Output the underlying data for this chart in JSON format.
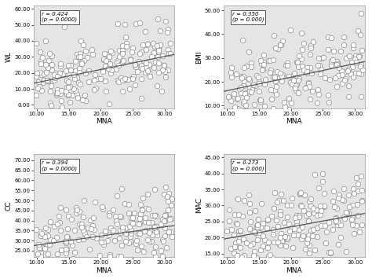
{
  "panels": [
    {
      "ylabel": "WL",
      "xlabel": "MNA",
      "r_value": "r = 0.424",
      "p_value": "(p = 0.0000)",
      "xlim": [
        9.5,
        31.5
      ],
      "ylim": [
        -2,
        62
      ],
      "xticks": [
        10,
        15,
        20,
        25,
        30
      ],
      "yticks": [
        0,
        10,
        20,
        30,
        40,
        50,
        60
      ],
      "line_x": [
        9.5,
        31.5
      ],
      "line_y": [
        13.5,
        31.5
      ],
      "row": 0,
      "col": 0,
      "show_xlabel": true
    },
    {
      "ylabel": "BMI",
      "xlabel": "MNA",
      "r_value": "r = 0.350",
      "p_value": "(p = 0.000)",
      "xlim": [
        9.5,
        31.5
      ],
      "ylim": [
        9,
        52
      ],
      "xticks": [
        10,
        15,
        20,
        25,
        30
      ],
      "yticks": [
        10,
        20,
        30,
        40,
        50
      ],
      "line_x": [
        9.5,
        31.5
      ],
      "line_y": [
        16.0,
        28.5
      ],
      "row": 0,
      "col": 1,
      "show_xlabel": true
    },
    {
      "ylabel": "CC",
      "xlabel": "MNA",
      "r_value": "r = 0.394",
      "p_value": "(p = 0.0000)",
      "xlim": [
        9.5,
        31.5
      ],
      "ylim": [
        22,
        73
      ],
      "xticks": [
        10,
        15,
        20,
        25,
        30
      ],
      "yticks": [
        25,
        30,
        35,
        40,
        45,
        50,
        55,
        60,
        65,
        70
      ],
      "line_x": [
        9.5,
        31.5
      ],
      "line_y": [
        27.5,
        37.5
      ],
      "row": 1,
      "col": 0,
      "show_xlabel": true
    },
    {
      "ylabel": "MAC",
      "xlabel": "MNA",
      "r_value": "r = 0.273",
      "p_value": "(p = 0.000)",
      "xlim": [
        9.5,
        31.5
      ],
      "ylim": [
        14,
        46
      ],
      "xticks": [
        10,
        15,
        20,
        25,
        30
      ],
      "yticks": [
        15,
        20,
        25,
        30,
        35,
        40,
        45
      ],
      "line_x": [
        9.5,
        31.5
      ],
      "line_y": [
        19.5,
        27.5
      ],
      "row": 1,
      "col": 1,
      "show_xlabel": true
    }
  ],
  "bg_color": "#e5e5e5",
  "fig_bg_color": "#ffffff",
  "scatter_face_color": "#ffffff",
  "scatter_edge_color": "#888888",
  "line_color": "#555555",
  "marker_size": 22,
  "n_points": 220,
  "seed": 42,
  "annotation_fontsize": 5.0,
  "tick_fontsize": 5.0,
  "label_fontsize": 6.5
}
